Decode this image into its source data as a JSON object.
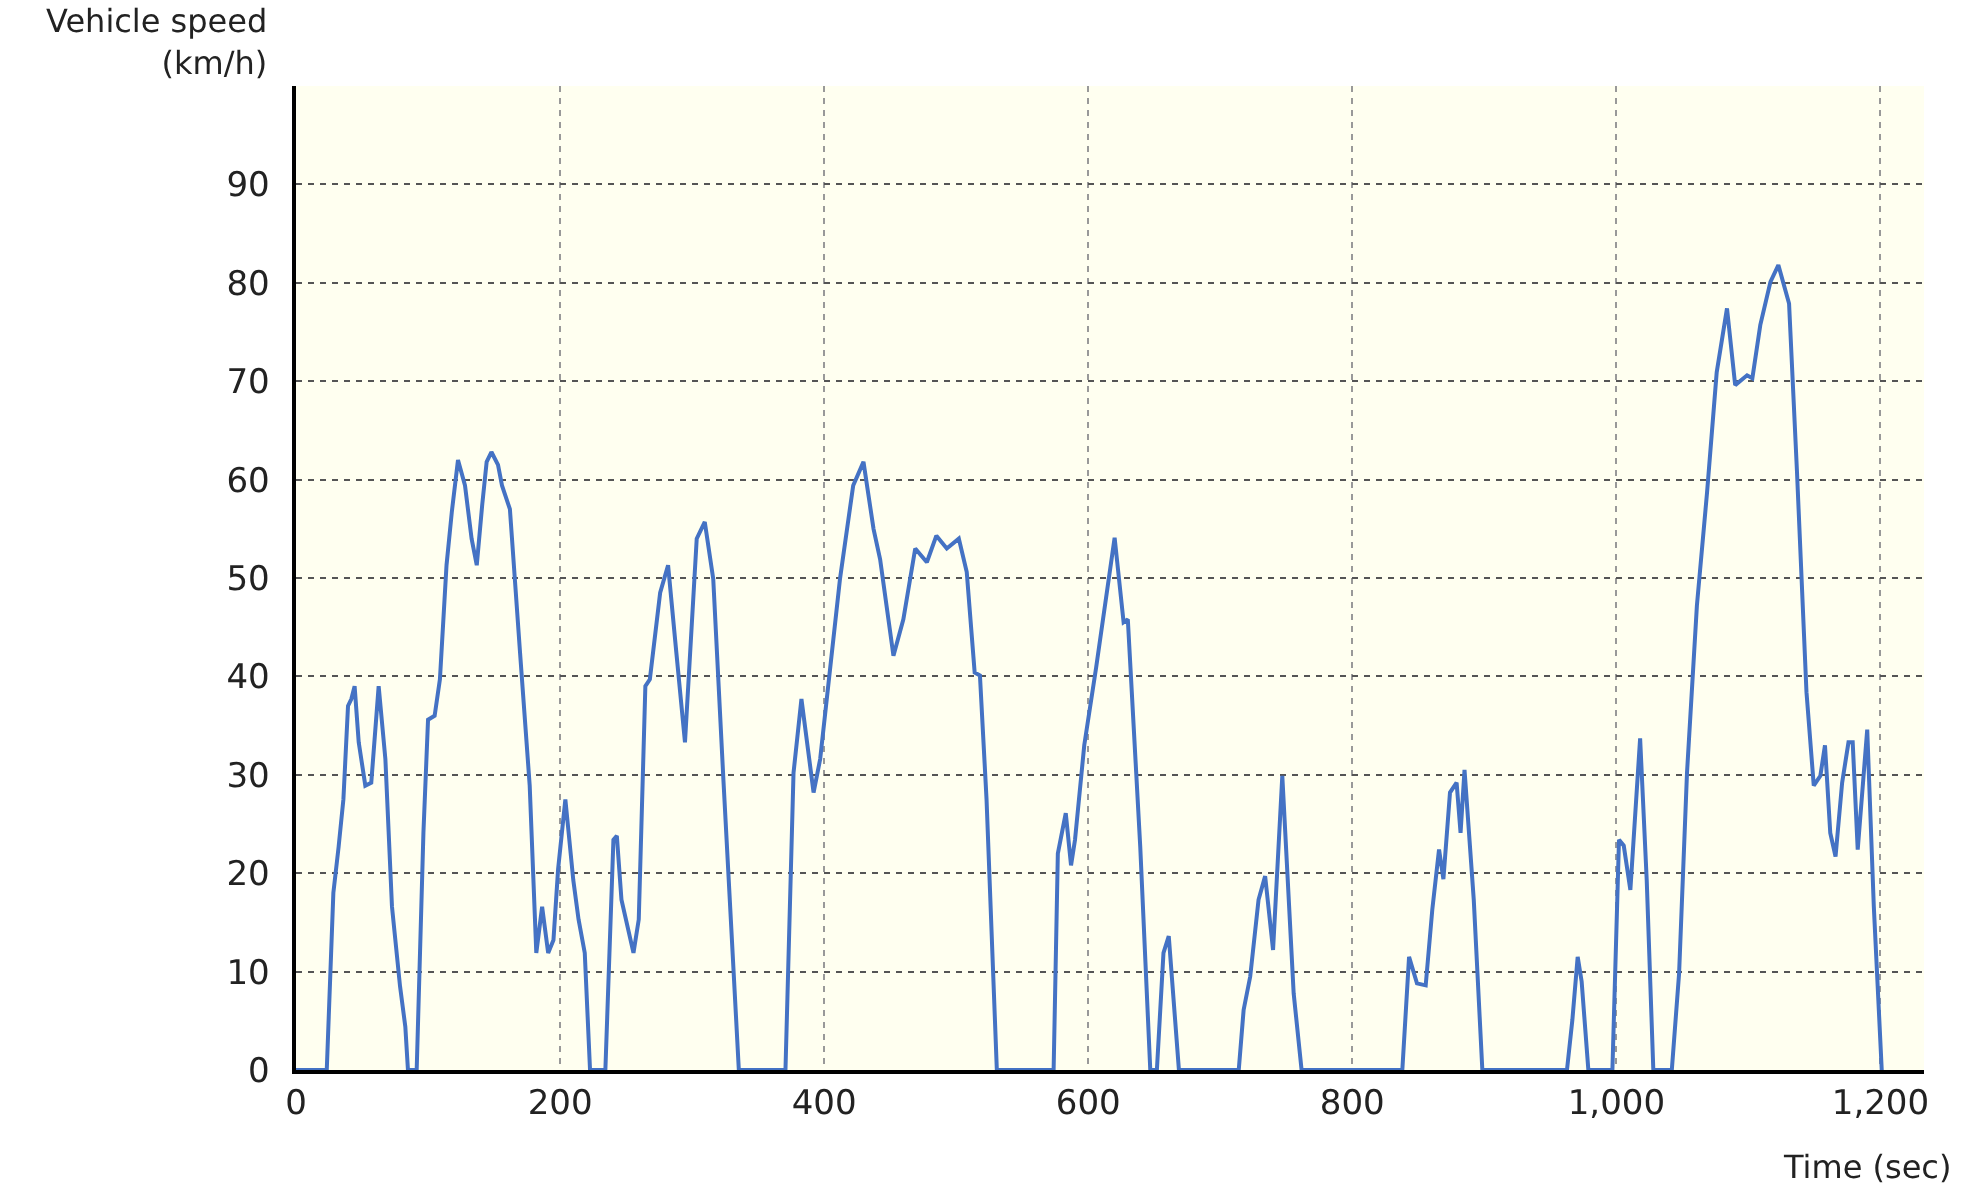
{
  "chart_data": {
    "type": "line",
    "xlabel": "Time (sec)",
    "ylabel": "Vehicle speed\n(km/h)",
    "x": [
      0,
      23.3,
      28.3,
      32.3,
      35.9,
      39.4,
      41.9,
      44.4,
      47.5,
      52.5,
      57,
      62.6,
      67.7,
      72.7,
      78.8,
      82.8,
      84.8,
      91.4,
      96.5,
      100,
      105,
      109,
      114,
      118,
      122.7,
      128,
      133,
      136.9,
      141,
      144.4,
      148,
      153,
      156,
      162,
      169.7,
      177,
      182,
      186.4,
      191,
      195,
      198.5,
      204,
      210,
      214,
      218.7,
      222.7,
      234.3,
      240.4,
      243,
      246.5,
      255.6,
      259.6,
      264.6,
      268,
      275.8,
      281.8,
      288,
      294.6,
      303.5,
      309.6,
      316,
      323.7,
      335.4,
      370.7,
      376.8,
      382.8,
      392,
      397,
      412,
      422,
      429.8,
      437.4,
      442.4,
      452.5,
      460,
      469,
      477.8,
      485,
      492.9,
      502,
      508,
      514,
      518,
      523,
      530.8,
      573.8,
      577,
      583,
      587,
      590,
      597,
      606,
      620,
      626.8,
      630,
      639.4,
      647,
      652,
      657,
      661,
      668.7,
      714,
      717.7,
      722.7,
      729,
      734,
      740,
      747,
      755.6,
      761.6,
      837.9,
      843,
      849,
      855.6,
      860.6,
      865.7,
      869,
      874,
      879,
      882,
      885,
      892,
      898.5,
      962.6,
      966.7,
      970.7,
      973.7,
      978.8,
      997,
      1002,
      1005.6,
      1010.6,
      1018,
      1023,
      1028,
      1042,
      1047.5,
      1053.5,
      1061,
      1068.7,
      1076,
      1083.8,
      1090,
      1099,
      1103,
      1109,
      1116.7,
      1122.7,
      1130.8,
      1136.8,
      1144,
      1149.5,
      1154.5,
      1158,
      1162,
      1166,
      1171,
      1175.8,
      1179,
      1182.8,
      1190,
      1195,
      1201
    ],
    "series": [
      {
        "color": "#4472c4",
        "values": [
          0,
          0,
          18.0,
          22.7,
          27.5,
          37.0,
          37.7,
          39.0,
          33.3,
          28.9,
          29.2,
          39.0,
          31.6,
          16.6,
          8.5,
          4.4,
          0,
          0,
          24.1,
          35.6,
          36,
          39.7,
          51.3,
          56.7,
          62.0,
          59.4,
          54.0,
          51.3,
          57.4,
          61.8,
          62.8,
          61.5,
          59.4,
          57.0,
          42.4,
          28.9,
          11.9,
          16.6,
          11.9,
          13.2,
          20.4,
          27.5,
          19.3,
          15.3,
          11.9,
          0,
          0,
          23.4,
          23.8,
          17.3,
          11.9,
          15.3,
          39.0,
          39.7,
          48.5,
          51.3,
          42.5,
          33.3,
          54.0,
          55.7,
          49.9,
          29.5,
          0,
          0,
          30.2,
          37.7,
          28.2,
          31.6,
          49.9,
          59.4,
          61.8,
          55.0,
          51.9,
          42.1,
          45.8,
          53.0,
          51.6,
          54.3,
          53.0,
          54.0,
          50.6,
          40.4,
          40.1,
          27.5,
          0,
          0,
          22,
          26.1,
          20.8,
          23.4,
          33,
          40.9,
          54.1,
          45.5,
          45.8,
          22.7,
          0,
          0,
          11.9,
          13.6,
          0,
          0,
          6.1,
          9.5,
          17.3,
          19.7,
          12.2,
          29.9,
          7.8,
          0,
          0,
          11.5,
          8.8,
          8.6,
          16.3,
          22.4,
          19.4,
          28.2,
          29.2,
          24.1,
          30.5,
          17.3,
          0,
          0,
          5.1,
          11.5,
          9.0,
          0,
          0,
          23.4,
          22.8,
          18.3,
          33.7,
          19.3,
          0,
          0,
          9.8,
          30.2,
          47.2,
          58.7,
          70.9,
          77.4,
          69.6,
          70.6,
          70.3,
          75.7,
          80.1,
          81.8,
          77.9,
          60.8,
          38.4,
          28.9,
          29.9,
          33,
          24.1,
          21.7,
          29.2,
          33.3,
          33.3,
          22.4,
          34.6,
          16.6,
          0
        ]
      }
    ],
    "xlim": [
      0,
      1233
    ],
    "ylim": [
      0,
      100
    ],
    "xticks": [
      0,
      200,
      400,
      600,
      800,
      {
        "value": 1000,
        "label": "1,000"
      },
      {
        "value": 1200,
        "label": "1,200"
      }
    ],
    "yticks": [
      0,
      10,
      20,
      30,
      40,
      50,
      60,
      70,
      80,
      90
    ],
    "grid": true
  }
}
